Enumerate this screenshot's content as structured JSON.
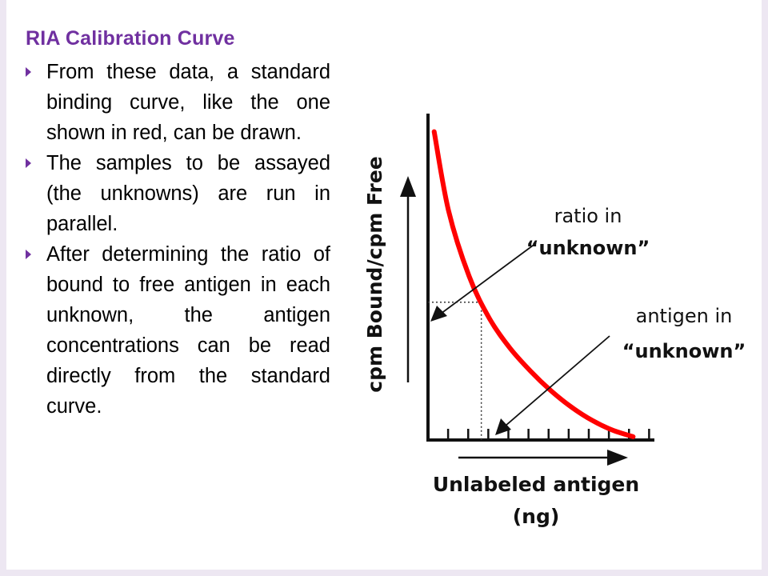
{
  "slide": {
    "title": "RIA Calibration Curve",
    "bullets": [
      "From these data, a standard binding curve, like the one shown in red, can be drawn.",
      "The samples to be assayed (the unknowns) are run in parallel.",
      "After determining the ratio of bound to free antigen in each unknown, the antigen concentrations can be read directly from the standard curve."
    ]
  },
  "figure": {
    "y_axis_label": "cpm Bound/cpm Free",
    "x_axis_label_line1": "Unlabeled antigen",
    "x_axis_label_line2": "(ng)",
    "annotation_ratio_line1": "ratio in",
    "annotation_ratio_line2": "“unknown”",
    "annotation_antigen_line1": "antigen in",
    "annotation_antigen_line2": "“unknown”",
    "curve_color": "#ff0000",
    "accent_color": "#7030a0"
  },
  "chart_data": {
    "type": "line",
    "title": "",
    "xlabel": "Unlabeled antigen (ng)",
    "ylabel": "cpm Bound/cpm Free",
    "series": [
      {
        "name": "standard binding curve",
        "x": [
          0.3,
          1,
          2,
          3,
          4,
          5,
          6,
          7,
          8,
          9,
          10
        ],
        "y": [
          9.4,
          7.0,
          5.0,
          3.7,
          2.8,
          2.1,
          1.5,
          1.0,
          0.6,
          0.3,
          0.1
        ]
      }
    ],
    "unknown_point": {
      "x": 2.6,
      "y": 4.2
    },
    "xlim": [
      0,
      11
    ],
    "ylim": [
      0,
      10
    ],
    "grid": false
  }
}
